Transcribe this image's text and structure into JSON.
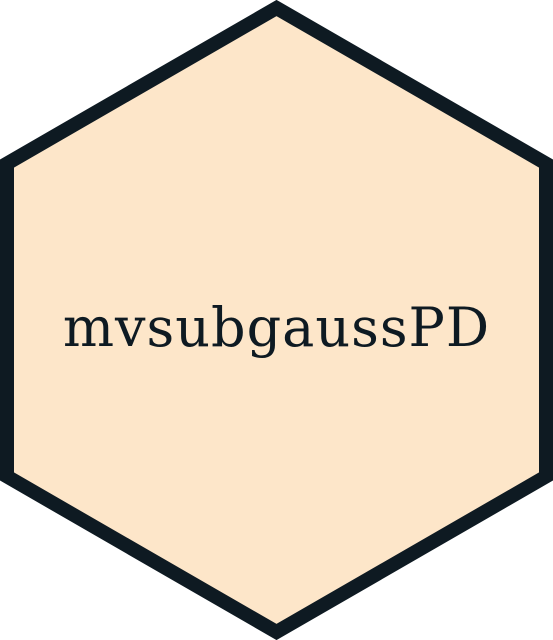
{
  "logo": {
    "title": "mvsubgaussPD",
    "fill_color": "#FDE6C9",
    "border_color": "#0E1A22",
    "text_color": "#0E1A22"
  }
}
